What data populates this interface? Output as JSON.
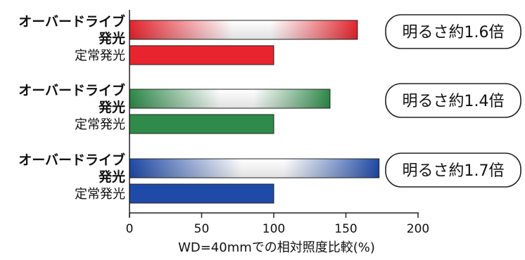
{
  "chart_data": {
    "type": "bar",
    "orientation": "horizontal",
    "title": "",
    "xlabel": "WD=40mmでの相対照度比較(%)",
    "ylabel": "",
    "xlim": [
      0,
      200
    ],
    "xticks": [
      0,
      50,
      100,
      150,
      200
    ],
    "grid": false,
    "legend": "none",
    "groups": [
      {
        "color": "#e8242e",
        "annotation": "明るさ約1.6倍",
        "bars": [
          {
            "label_line1": "オーバードライブ",
            "label_line2": "発光",
            "value": 158,
            "style": "gradient"
          },
          {
            "label_line1": "定常発光",
            "label_line2": "",
            "value": 100,
            "style": "solid"
          }
        ]
      },
      {
        "color": "#2e8b4a",
        "annotation": "明るさ約1.4倍",
        "bars": [
          {
            "label_line1": "オーバードライブ",
            "label_line2": "発光",
            "value": 139,
            "style": "gradient"
          },
          {
            "label_line1": "定常発光",
            "label_line2": "",
            "value": 100,
            "style": "solid"
          }
        ]
      },
      {
        "color": "#1f4aa8",
        "annotation": "明るさ約1.7倍",
        "bars": [
          {
            "label_line1": "オーバードライブ",
            "label_line2": "発光",
            "value": 173,
            "style": "gradient"
          },
          {
            "label_line1": "定常発光",
            "label_line2": "",
            "value": 100,
            "style": "solid"
          }
        ]
      }
    ]
  }
}
